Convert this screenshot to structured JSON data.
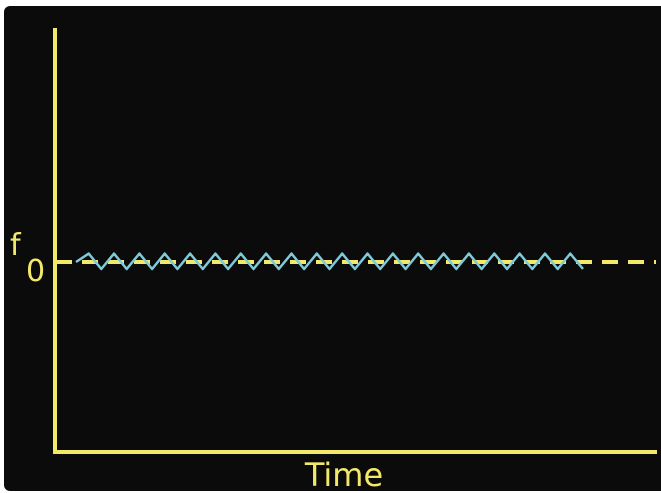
{
  "chart_data": {
    "type": "line",
    "xlabel": "Time",
    "ylabel": "",
    "reference_line": {
      "label_main": "f",
      "label_subscript": "0",
      "value": 0,
      "style": "dashed"
    },
    "series": [
      {
        "values": [
          0,
          0.6,
          -0.5,
          0.6,
          -0.5,
          0.6,
          -0.5,
          0.6,
          -0.5,
          0.6,
          -0.5,
          0.6,
          -0.5,
          0.6,
          -0.5,
          0.6,
          -0.5,
          0.6,
          -0.5,
          0.6,
          -0.5,
          0.6,
          -0.5,
          0.6,
          -0.5,
          0.6,
          -0.5,
          0.6,
          -0.5,
          0.6,
          -0.5,
          0.6,
          -0.5,
          0.6,
          -0.5,
          0.6,
          -0.5,
          0.6,
          -0.5,
          0.6,
          -0.5
        ]
      }
    ],
    "grid": false,
    "colors": {
      "axis": "#f2e96a",
      "reference": "#f2e96a",
      "series": "#7fc9d8",
      "background": "#0b0b0b"
    }
  }
}
